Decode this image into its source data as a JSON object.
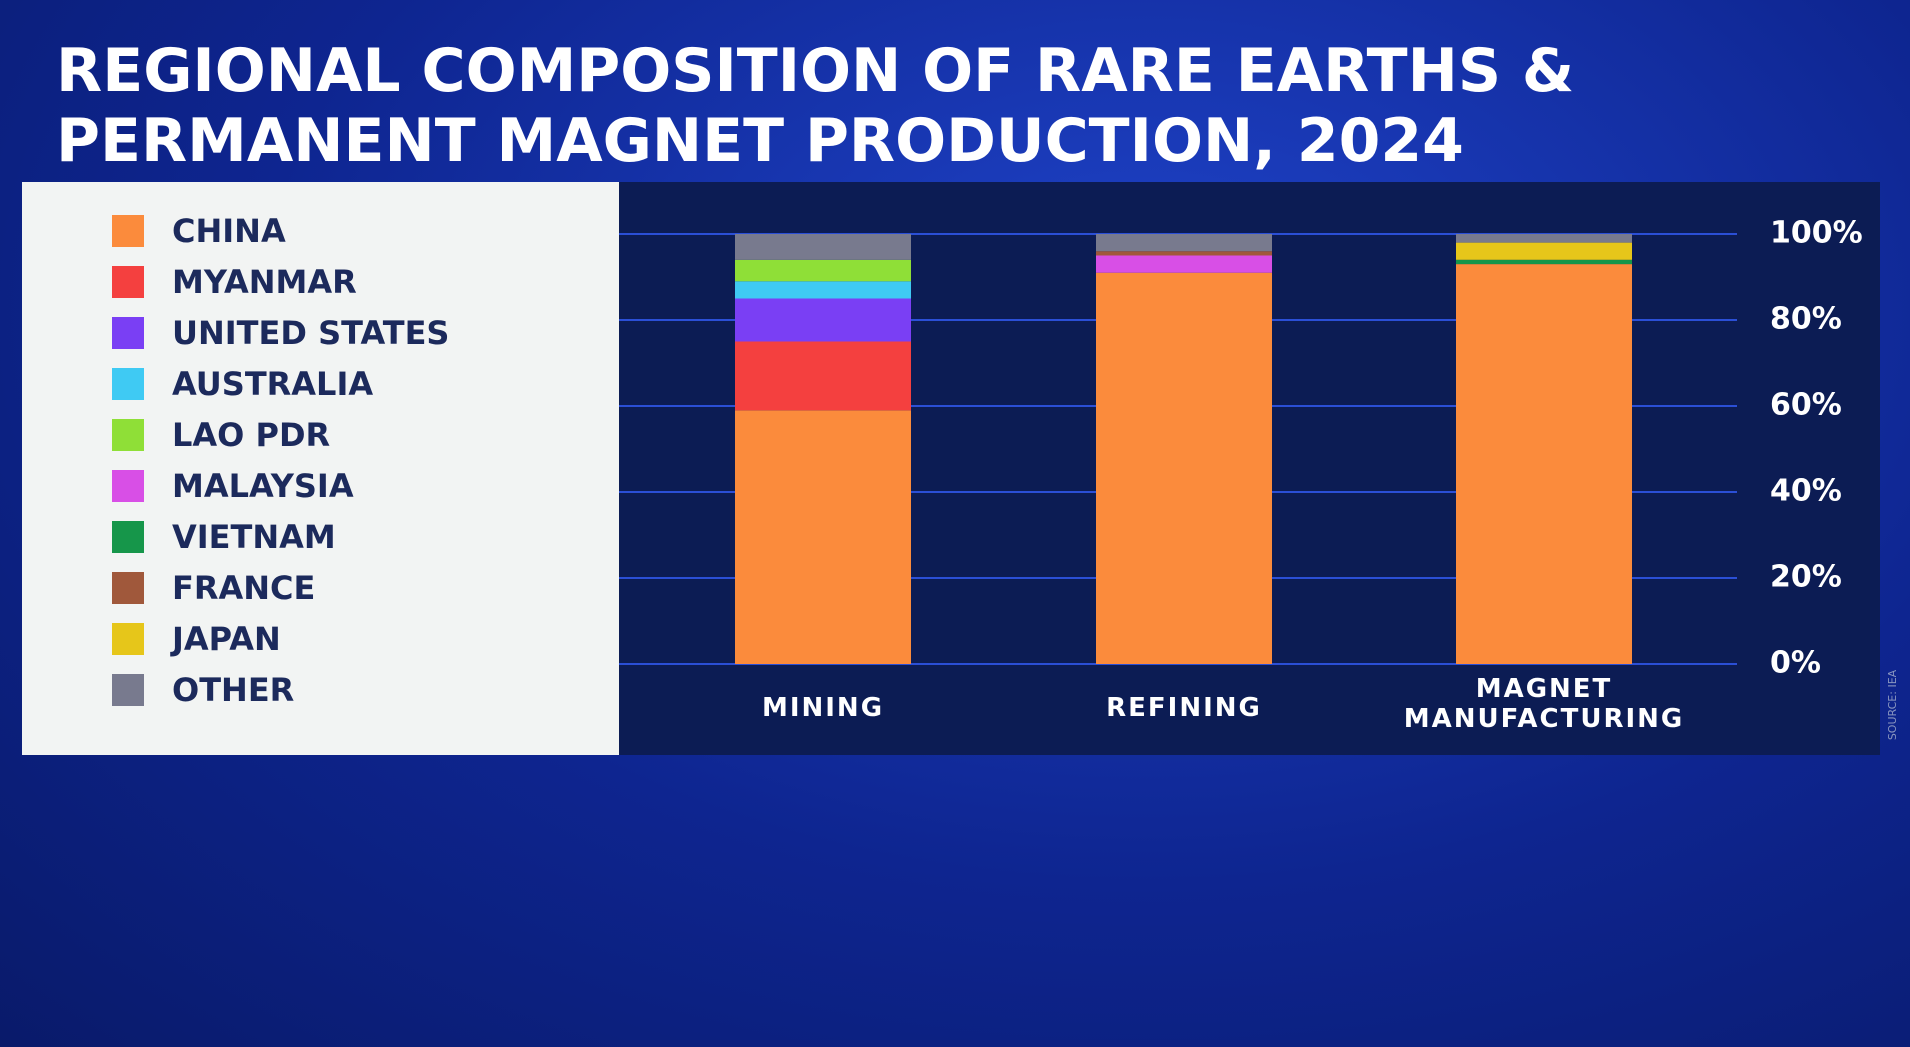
{
  "chart_data": {
    "type": "stacked_bar",
    "title": "REGIONAL COMPOSITION OF RARE EARTHS & PERMANENT MAGNET PRODUCTION, 2024",
    "source": "SOURCE: IEA",
    "categories": [
      "MINING",
      "REFINING",
      "MAGNET MANUFACTURING"
    ],
    "series": [
      {
        "name": "CHINA",
        "color": "#fb8b3c",
        "values": [
          59,
          91,
          93
        ]
      },
      {
        "name": "MYANMAR",
        "color": "#f4403f",
        "values": [
          16,
          0,
          0
        ]
      },
      {
        "name": "UNITED STATES",
        "color": "#7a3ff4",
        "values": [
          10,
          0,
          0
        ]
      },
      {
        "name": "AUSTRALIA",
        "color": "#3fcaf3",
        "values": [
          4,
          0,
          0
        ]
      },
      {
        "name": "LAO PDR",
        "color": "#8fdf37",
        "values": [
          5,
          0,
          0
        ]
      },
      {
        "name": "MALAYSIA",
        "color": "#d84fe6",
        "values": [
          0,
          4,
          0
        ]
      },
      {
        "name": "VIETNAM",
        "color": "#16964a",
        "values": [
          0,
          0,
          1
        ]
      },
      {
        "name": "FRANCE",
        "color": "#a0583b",
        "values": [
          0,
          1,
          0
        ]
      },
      {
        "name": "JAPAN",
        "color": "#e6c61a",
        "values": [
          0,
          0,
          4
        ]
      },
      {
        "name": "OTHER",
        "color": "#787a8e",
        "values": [
          6,
          4,
          2
        ]
      }
    ],
    "ylim": [
      0,
      100
    ],
    "yticks": [
      {
        "value": 0,
        "label": "0%"
      },
      {
        "value": 20,
        "label": "20%"
      },
      {
        "value": 40,
        "label": "40%"
      },
      {
        "value": 60,
        "label": "60%"
      },
      {
        "value": 80,
        "label": "80%"
      },
      {
        "value": 100,
        "label": "100%"
      }
    ],
    "grid": true
  }
}
